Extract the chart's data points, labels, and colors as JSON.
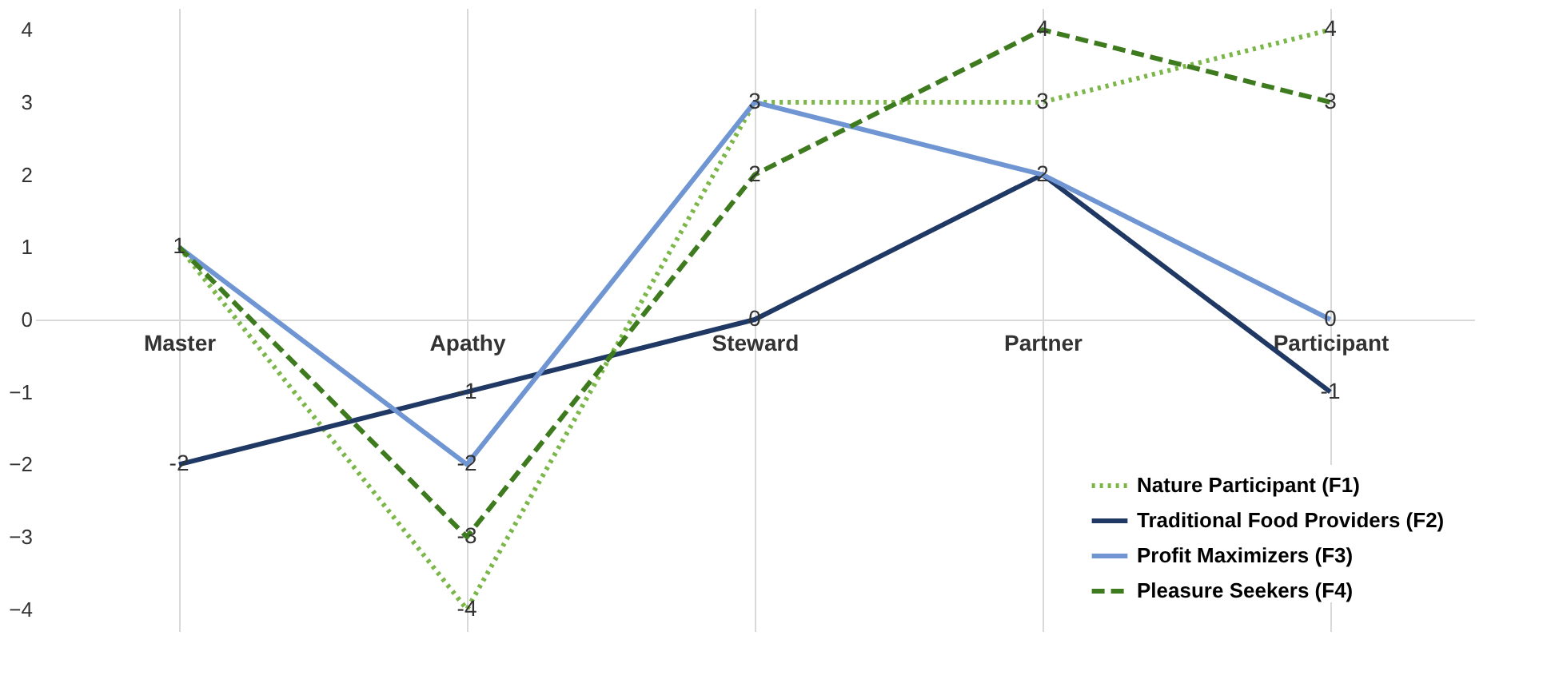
{
  "chart_data": {
    "type": "line",
    "categories": [
      "Master",
      "Apathy",
      "Steward",
      "Partner",
      "Participant"
    ],
    "series": [
      {
        "name": "Nature Participant (F1)",
        "color": "#7ab648",
        "line_style": "dotted",
        "values": [
          1,
          -4,
          3,
          3,
          4
        ],
        "value_labels": [
          "1",
          "-4",
          "3",
          "3",
          "4"
        ]
      },
      {
        "name": "Traditional Food Providers (F2)",
        "color": "#1f3864",
        "line_style": "solid",
        "values": [
          -2,
          -1,
          0,
          2,
          -1
        ],
        "value_labels": [
          "-2",
          "-1",
          "0",
          "2",
          "-1"
        ]
      },
      {
        "name": "Profit Maximizers (F3)",
        "color": "#6f96d2",
        "line_style": "solid",
        "values": [
          1,
          -2,
          3,
          2,
          0
        ],
        "value_labels": [
          null,
          "-2",
          null,
          null,
          "0"
        ]
      },
      {
        "name": "Pleasure Seekers (F4)",
        "color": "#3e7a1e",
        "line_style": "dashed",
        "values": [
          1,
          -3,
          2,
          4,
          3
        ],
        "value_labels": [
          null,
          "-3",
          "2",
          "4",
          "3"
        ]
      }
    ],
    "ylim": [
      -4.3,
      4.3
    ],
    "yticks": [
      -4,
      -3,
      -2,
      -1,
      0,
      1,
      2,
      3,
      4
    ],
    "grid": "x",
    "legend": "bottom right",
    "marker": "none"
  }
}
